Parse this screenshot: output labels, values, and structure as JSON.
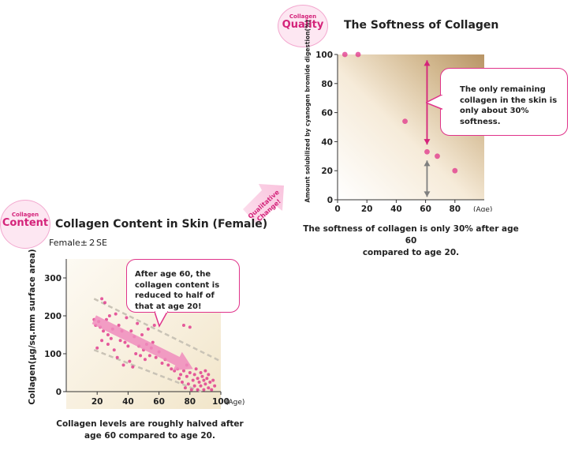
{
  "quality_badge": {
    "small": "Collagen",
    "big": "Quality"
  },
  "content_badge": {
    "small": "Collagen",
    "big": "Content"
  },
  "qualitative_arrow_label": {
    "line1": "Qualitative",
    "line2": "Change!"
  },
  "chart_data": [
    {
      "type": "scatter",
      "title": "The Softness of Collagen",
      "ylabel": "Amount solubilized by cyanogen bromide digestion(%)",
      "xlabel": "(Age)",
      "xlim": [
        0,
        100
      ],
      "ylim": [
        0,
        100
      ],
      "xticks": [
        0,
        20,
        40,
        60,
        80
      ],
      "yticks": [
        0,
        20,
        40,
        60,
        80,
        100
      ],
      "points": [
        {
          "x": 5,
          "y": 100
        },
        {
          "x": 14,
          "y": 100
        },
        {
          "x": 46,
          "y": 54
        },
        {
          "x": 61,
          "y": 33
        },
        {
          "x": 68,
          "y": 30
        },
        {
          "x": 80,
          "y": 20
        }
      ],
      "callout": "The only remaining collagen in the skin is only about 30% softness.",
      "caption_line1": "The softness of collagen is only 30% after age 60",
      "caption_line2": "compared to age 20.",
      "accent_color": "#e0338a",
      "arrow_color": "#d4237a",
      "gray_arrow_color": "#7f7f7f"
    },
    {
      "type": "scatter",
      "title": "Collagen Content in Skin (Female)",
      "subtitle": "Female±２SE",
      "ylabel": "Collagen(μg/sq.mm surface area)",
      "xlabel": "(Age)",
      "xlim": [
        0,
        100
      ],
      "ylim": [
        0,
        300
      ],
      "xticks": [
        20,
        40,
        60,
        80,
        100
      ],
      "yticks": [
        0,
        100,
        200,
        300
      ],
      "points": [
        {
          "x": 18,
          "y": 190
        },
        {
          "x": 19,
          "y": 175
        },
        {
          "x": 20,
          "y": 115
        },
        {
          "x": 21,
          "y": 185
        },
        {
          "x": 22,
          "y": 170
        },
        {
          "x": 23,
          "y": 245
        },
        {
          "x": 23,
          "y": 135
        },
        {
          "x": 24,
          "y": 160
        },
        {
          "x": 25,
          "y": 235
        },
        {
          "x": 26,
          "y": 190
        },
        {
          "x": 27,
          "y": 150
        },
        {
          "x": 27,
          "y": 125
        },
        {
          "x": 28,
          "y": 200
        },
        {
          "x": 29,
          "y": 140
        },
        {
          "x": 30,
          "y": 165
        },
        {
          "x": 31,
          "y": 110
        },
        {
          "x": 32,
          "y": 205
        },
        {
          "x": 33,
          "y": 90
        },
        {
          "x": 34,
          "y": 175
        },
        {
          "x": 35,
          "y": 135
        },
        {
          "x": 36,
          "y": 160
        },
        {
          "x": 37,
          "y": 70
        },
        {
          "x": 38,
          "y": 130
        },
        {
          "x": 39,
          "y": 195
        },
        {
          "x": 40,
          "y": 120
        },
        {
          "x": 41,
          "y": 80
        },
        {
          "x": 42,
          "y": 160
        },
        {
          "x": 43,
          "y": 65
        },
        {
          "x": 44,
          "y": 145
        },
        {
          "x": 45,
          "y": 100
        },
        {
          "x": 46,
          "y": 180
        },
        {
          "x": 47,
          "y": 120
        },
        {
          "x": 48,
          "y": 95
        },
        {
          "x": 49,
          "y": 150
        },
        {
          "x": 50,
          "y": 110
        },
        {
          "x": 51,
          "y": 85
        },
        {
          "x": 52,
          "y": 125
        },
        {
          "x": 53,
          "y": 165
        },
        {
          "x": 54,
          "y": 95
        },
        {
          "x": 55,
          "y": 115
        },
        {
          "x": 56,
          "y": 130
        },
        {
          "x": 57,
          "y": 175
        },
        {
          "x": 58,
          "y": 90
        },
        {
          "x": 60,
          "y": 105
        },
        {
          "x": 62,
          "y": 75
        },
        {
          "x": 64,
          "y": 85
        },
        {
          "x": 66,
          "y": 70
        },
        {
          "x": 68,
          "y": 60
        },
        {
          "x": 70,
          "y": 55
        },
        {
          "x": 72,
          "y": 60
        },
        {
          "x": 73,
          "y": 35
        },
        {
          "x": 74,
          "y": 45
        },
        {
          "x": 75,
          "y": 25
        },
        {
          "x": 76,
          "y": 55
        },
        {
          "x": 76,
          "y": 175
        },
        {
          "x": 77,
          "y": 10
        },
        {
          "x": 78,
          "y": 40
        },
        {
          "x": 78,
          "y": 70
        },
        {
          "x": 79,
          "y": 20
        },
        {
          "x": 80,
          "y": 50
        },
        {
          "x": 80,
          "y": 170
        },
        {
          "x": 81,
          "y": 5
        },
        {
          "x": 82,
          "y": 30
        },
        {
          "x": 83,
          "y": 45
        },
        {
          "x": 83,
          "y": 15
        },
        {
          "x": 84,
          "y": 60
        },
        {
          "x": 85,
          "y": 35
        },
        {
          "x": 85,
          "y": 5
        },
        {
          "x": 86,
          "y": 25
        },
        {
          "x": 87,
          "y": 50
        },
        {
          "x": 87,
          "y": 15
        },
        {
          "x": 88,
          "y": 40
        },
        {
          "x": 89,
          "y": 30
        },
        {
          "x": 89,
          "y": 5
        },
        {
          "x": 90,
          "y": 55
        },
        {
          "x": 90,
          "y": 20
        },
        {
          "x": 91,
          "y": 35
        },
        {
          "x": 92,
          "y": 10
        },
        {
          "x": 92,
          "y": 45
        },
        {
          "x": 93,
          "y": 25
        },
        {
          "x": 94,
          "y": 5
        },
        {
          "x": 95,
          "y": 30
        },
        {
          "x": 96,
          "y": 15
        }
      ],
      "trend_start": {
        "x": 18,
        "y": 190
      },
      "trend_end": {
        "x": 82,
        "y": 60
      },
      "se_upper": [
        {
          "x": 18,
          "y": 245
        },
        {
          "x": 100,
          "y": 80
        }
      ],
      "se_lower": [
        {
          "x": 18,
          "y": 110
        },
        {
          "x": 100,
          "y": -20
        }
      ],
      "callout": "After age 60, the collagen content is reduced to half of that at age 20!",
      "caption_line1": "Collagen levels are roughly halved after",
      "caption_line2": "age 60 compared to age 20.",
      "accent_color": "#e0338a",
      "trend_color": "#f08cbd"
    }
  ]
}
